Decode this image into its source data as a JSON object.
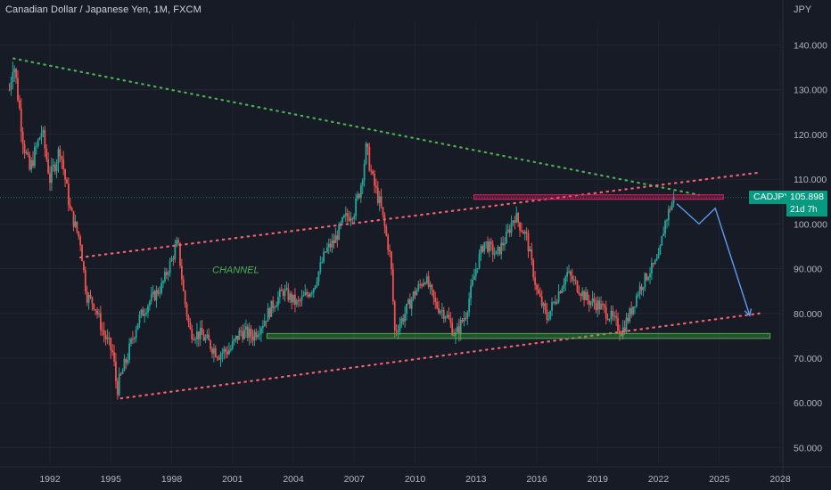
{
  "header": {
    "title": "Canadian Dollar / Japanese Yen, 1M, FXCM",
    "unit": "JPY"
  },
  "price_label": {
    "symbol": "CADJPY",
    "value": "105.898",
    "countdown": "21d 7h"
  },
  "colors": {
    "background": "#171b26",
    "up": "#26a69a",
    "down": "#ef5350",
    "trend_green": "#4caf50",
    "trend_red": "#f06070",
    "arrow": "#5b9cf0",
    "badge": "#089981"
  },
  "chart_data": {
    "type": "candlestick",
    "symbol": "CADJPY",
    "timeframe": "1M",
    "x_ticks": [
      "1992",
      "1995",
      "1998",
      "2001",
      "2004",
      "2007",
      "2010",
      "2013",
      "2016",
      "2019",
      "2022",
      "2025",
      "2028"
    ],
    "y_ticks": [
      "50.000",
      "60.000",
      "70.000",
      "80.000",
      "90.000",
      "100.000",
      "110.000",
      "120.000",
      "130.000",
      "140.000"
    ],
    "ylim": [
      45,
      145
    ],
    "xlim": [
      1989.5,
      2029.5
    ],
    "last_price": 105.898,
    "price_path": [
      [
        1990.0,
        130
      ],
      [
        1990.2,
        137
      ],
      [
        1990.7,
        118
      ],
      [
        1991.0,
        112
      ],
      [
        1991.6,
        121
      ],
      [
        1992.0,
        110
      ],
      [
        1992.5,
        117
      ],
      [
        1993.0,
        103
      ],
      [
        1993.5,
        96
      ],
      [
        1993.8,
        84
      ],
      [
        1994.2,
        82
      ],
      [
        1994.6,
        76
      ],
      [
        1995.1,
        71
      ],
      [
        1995.3,
        63
      ],
      [
        1995.8,
        70
      ],
      [
        1996.3,
        78
      ],
      [
        1996.8,
        82
      ],
      [
        1997.5,
        86
      ],
      [
        1998.0,
        92
      ],
      [
        1998.3,
        96
      ],
      [
        1998.6,
        84
      ],
      [
        1998.9,
        76
      ],
      [
        1999.5,
        75
      ],
      [
        2000.3,
        71
      ],
      [
        2000.9,
        72
      ],
      [
        2001.4,
        76
      ],
      [
        2002.0,
        75
      ],
      [
        2002.5,
        78
      ],
      [
        2003.0,
        82
      ],
      [
        2003.5,
        85
      ],
      [
        2004.2,
        82
      ],
      [
        2005.0,
        86
      ],
      [
        2005.6,
        94
      ],
      [
        2006.0,
        96
      ],
      [
        2006.5,
        101
      ],
      [
        2007.0,
        103
      ],
      [
        2007.3,
        108
      ],
      [
        2007.6,
        117
      ],
      [
        2007.9,
        110
      ],
      [
        2008.3,
        104
      ],
      [
        2008.8,
        92
      ],
      [
        2009.0,
        76
      ],
      [
        2009.4,
        79
      ],
      [
        2009.9,
        84
      ],
      [
        2010.5,
        88
      ],
      [
        2011.0,
        82
      ],
      [
        2011.5,
        80
      ],
      [
        2012.0,
        75
      ],
      [
        2012.5,
        80
      ],
      [
        2013.0,
        90
      ],
      [
        2013.4,
        96
      ],
      [
        2014.0,
        93
      ],
      [
        2014.5,
        97
      ],
      [
        2014.9,
        102
      ],
      [
        2015.5,
        97
      ],
      [
        2016.0,
        85
      ],
      [
        2016.5,
        79
      ],
      [
        2017.0,
        84
      ],
      [
        2017.5,
        89
      ],
      [
        2018.0,
        86
      ],
      [
        2018.5,
        83
      ],
      [
        2019.0,
        82
      ],
      [
        2019.5,
        80
      ],
      [
        2020.2,
        76
      ],
      [
        2020.6,
        80
      ],
      [
        2021.0,
        85
      ],
      [
        2021.5,
        89
      ],
      [
        2022.0,
        92
      ],
      [
        2022.3,
        100
      ],
      [
        2022.6,
        104
      ],
      [
        2022.8,
        105.9
      ]
    ],
    "annotations": [
      {
        "type": "trendline",
        "style": "dotted",
        "color": "green",
        "from": [
          1990.2,
          137
        ],
        "to": [
          2024.0,
          106.5
        ]
      },
      {
        "type": "trendline",
        "style": "dotted",
        "color": "red",
        "from": [
          1993.5,
          92.5
        ],
        "to": [
          2027.0,
          111.5
        ]
      },
      {
        "type": "trendline",
        "style": "dotted",
        "color": "red",
        "from": [
          1995.5,
          61.0
        ],
        "to": [
          2027.0,
          80.0
        ]
      },
      {
        "type": "zone",
        "color": "red",
        "from": [
          2012.9,
          106.5
        ],
        "to": [
          2025.2,
          105.5
        ]
      },
      {
        "type": "zone",
        "color": "green",
        "from": [
          2002.7,
          75.5
        ],
        "to": [
          2027.5,
          74.4
        ]
      },
      {
        "type": "projection",
        "color": "blue",
        "points": [
          [
            2022.9,
            104.5
          ],
          [
            2024.0,
            100.0
          ],
          [
            2024.8,
            103.5
          ],
          [
            2026.5,
            79.5
          ]
        ]
      },
      {
        "type": "text",
        "text": "CHANNEL",
        "at": [
          2000.0,
          89.0
        ]
      }
    ]
  }
}
